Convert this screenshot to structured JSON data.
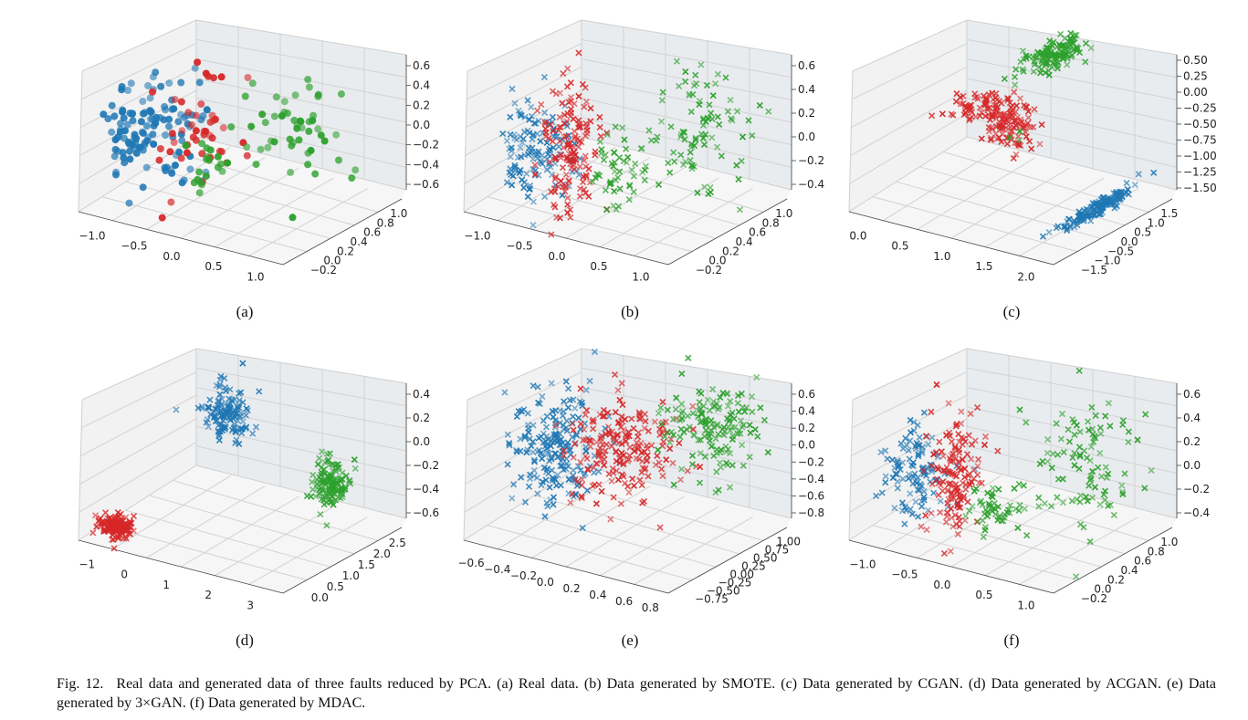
{
  "caption": {
    "label": "Fig. 12.",
    "text": "Real data and generated data of three faults reduced by PCA. (a) Real data. (b) Data generated by SMOTE. (c) Data generated by CGAN. (d) Data generated by ACGAN. (e) Data generated by 3×GAN. (f) Data generated by MDAC."
  },
  "colors": {
    "blue": "#1f77b4",
    "red": "#d62728",
    "green": "#2ca02c"
  },
  "chart_data": [
    {
      "id": "a",
      "label": "(a)",
      "type": "scatter",
      "marker": "circle",
      "x_ticks": [
        "−1.0",
        "−0.5",
        "0.0",
        "0.5",
        "1.0"
      ],
      "y_ticks": [
        "−0.2",
        "0.0",
        "0.2",
        "0.4",
        "0.6",
        "0.8",
        "1.0"
      ],
      "z_ticks": [
        "0.6",
        "0.4",
        "0.2",
        "0.0",
        "−0.2",
        "−0.4",
        "−0.6"
      ],
      "xlim": [
        -1.1,
        1.4
      ],
      "ylim": [
        -0.3,
        1.1
      ],
      "zlim": [
        -0.65,
        0.65
      ],
      "series": [
        {
          "color": "blue",
          "clusters": [
            {
              "x": -0.75,
              "y": 0.05,
              "z": 0.0,
              "sx": 0.15,
              "sy": 0.1,
              "sz": 0.25,
              "n": 80
            },
            {
              "x": -0.25,
              "y": 0.05,
              "z": 0.1,
              "sx": 0.15,
              "sy": 0.1,
              "sz": 0.25,
              "n": 40
            }
          ]
        },
        {
          "color": "red",
          "clusters": [
            {
              "x": -0.05,
              "y": 0.1,
              "z": 0.1,
              "sx": 0.2,
              "sy": 0.15,
              "sz": 0.3,
              "n": 45
            }
          ]
        },
        {
          "color": "green",
          "clusters": [
            {
              "x": 0.1,
              "y": 0.1,
              "z": -0.2,
              "sx": 0.1,
              "sy": 0.1,
              "sz": 0.15,
              "n": 20
            },
            {
              "x": 0.6,
              "y": 0.6,
              "z": 0.05,
              "sx": 0.3,
              "sy": 0.2,
              "sz": 0.3,
              "n": 50
            }
          ]
        }
      ]
    },
    {
      "id": "b",
      "label": "(b)",
      "type": "scatter",
      "marker": "x",
      "x_ticks": [
        "−1.0",
        "−0.5",
        "0.0",
        "0.5",
        "1.0"
      ],
      "y_ticks": [
        "−0.2",
        "0.0",
        "0.2",
        "0.4",
        "0.6",
        "0.8",
        "1.0"
      ],
      "z_ticks": [
        "0.6",
        "0.4",
        "0.2",
        "0.0",
        "−0.2",
        "−0.4"
      ],
      "xlim": [
        -1.1,
        1.4
      ],
      "ylim": [
        -0.3,
        1.1
      ],
      "zlim": [
        -0.5,
        0.65
      ],
      "series": [
        {
          "color": "blue",
          "clusters": [
            {
              "x": -0.7,
              "y": 0.05,
              "z": -0.05,
              "sx": 0.15,
              "sy": 0.08,
              "sz": 0.2,
              "n": 90
            },
            {
              "x": -0.35,
              "y": 0.05,
              "z": 0.05,
              "sx": 0.1,
              "sy": 0.08,
              "sz": 0.2,
              "n": 40
            }
          ]
        },
        {
          "color": "red",
          "clusters": [
            {
              "x": -0.15,
              "y": 0.05,
              "z": 0.05,
              "sx": 0.15,
              "sy": 0.1,
              "sz": 0.28,
              "n": 140
            }
          ]
        },
        {
          "color": "green",
          "clusters": [
            {
              "x": 0.25,
              "y": 0.25,
              "z": -0.15,
              "sx": 0.15,
              "sy": 0.1,
              "sz": 0.15,
              "n": 50
            },
            {
              "x": 0.75,
              "y": 0.7,
              "z": 0.05,
              "sx": 0.25,
              "sy": 0.2,
              "sz": 0.25,
              "n": 90
            }
          ]
        }
      ]
    },
    {
      "id": "c",
      "label": "(c)",
      "type": "scatter",
      "marker": "x",
      "x_ticks": [
        "0.0",
        "0.5",
        "1.0",
        "1.5",
        "2.0"
      ],
      "y_ticks": [
        "−1.5",
        "−1.0",
        "−0.5",
        "0.0",
        "0.5",
        "1.0",
        "1.5"
      ],
      "z_ticks": [
        "0.50",
        "0.25",
        "0.00",
        "−0.25",
        "−0.50",
        "−0.75",
        "−1.00",
        "−1.25",
        "−1.50"
      ],
      "xlim": [
        -0.1,
        2.3
      ],
      "ylim": [
        -1.7,
        1.7
      ],
      "zlim": [
        -1.55,
        0.6
      ],
      "series": [
        {
          "color": "blue",
          "clusters": [
            {
              "x": 2.0,
              "y": 0.3,
              "z": -1.45,
              "sx": 0.05,
              "sy": 0.5,
              "sz": 0.03,
              "n": 150
            }
          ]
        },
        {
          "color": "red",
          "clusters": [
            {
              "x": 0.9,
              "y": -0.5,
              "z": 0.05,
              "sx": 0.15,
              "sy": 0.3,
              "sz": 0.03,
              "n": 60
            },
            {
              "x": 1.1,
              "y": 0.0,
              "z": -0.35,
              "sx": 0.15,
              "sy": 0.2,
              "sz": 0.2,
              "n": 110
            }
          ]
        },
        {
          "color": "green",
          "clusters": [
            {
              "x": 1.2,
              "y": 1.0,
              "z": 0.45,
              "sx": 0.1,
              "sy": 0.4,
              "sz": 0.04,
              "n": 130
            },
            {
              "x": 1.2,
              "y": 0.0,
              "z": -0.6,
              "sx": 0.05,
              "sy": 0.05,
              "sz": 0.1,
              "n": 3
            }
          ]
        }
      ]
    },
    {
      "id": "d",
      "label": "(d)",
      "type": "scatter",
      "marker": "x",
      "x_ticks": [
        "−1",
        "0",
        "1",
        "2",
        "3"
      ],
      "y_ticks": [
        "0.0",
        "0.5",
        "1.0",
        "1.5",
        "2.0",
        "2.5"
      ],
      "z_ticks": [
        "0.4",
        "0.2",
        "0.0",
        "−0.2",
        "−0.4",
        "−0.6"
      ],
      "xlim": [
        -1.4,
        3.4
      ],
      "ylim": [
        -0.2,
        2.7
      ],
      "zlim": [
        -0.65,
        0.45
      ],
      "series": [
        {
          "color": "blue",
          "clusters": [
            {
              "x": 0.2,
              "y": 1.8,
              "z": 0.1,
              "sx": 0.25,
              "sy": 0.15,
              "sz": 0.12,
              "n": 130
            }
          ]
        },
        {
          "color": "red",
          "clusters": [
            {
              "x": -0.8,
              "y": 0.1,
              "z": -0.55,
              "sx": 0.18,
              "sy": 0.1,
              "sz": 0.04,
              "n": 150
            }
          ]
        },
        {
          "color": "green",
          "clusters": [
            {
              "x": 2.6,
              "y": 1.8,
              "z": -0.25,
              "sx": 0.15,
              "sy": 0.15,
              "sz": 0.1,
              "n": 130
            }
          ]
        }
      ]
    },
    {
      "id": "e",
      "label": "(e)",
      "type": "scatter",
      "marker": "x",
      "x_ticks": [
        "−0.6",
        "−0.4",
        "−0.2",
        "0.0",
        "0.2",
        "0.4",
        "0.6",
        "0.8"
      ],
      "y_ticks": [
        "−0.75",
        "−0.50",
        "−0.25",
        "0.00",
        "0.25",
        "0.50",
        "0.75",
        "1.00"
      ],
      "z_ticks": [
        "0.6",
        "0.4",
        "0.2",
        "0.0",
        "−0.2",
        "−0.4",
        "−0.6",
        "−0.8"
      ],
      "xlim": [
        -0.7,
        0.9
      ],
      "ylim": [
        -0.85,
        1.1
      ],
      "zlim": [
        -0.85,
        0.65
      ],
      "series": [
        {
          "color": "blue",
          "clusters": [
            {
              "x": -0.4,
              "y": 0.0,
              "z": -0.1,
              "sx": 0.15,
              "sy": 0.2,
              "sz": 0.3,
              "n": 200
            }
          ]
        },
        {
          "color": "red",
          "clusters": [
            {
              "x": 0.1,
              "y": 0.1,
              "z": 0.05,
              "sx": 0.2,
              "sy": 0.3,
              "sz": 0.25,
              "n": 200
            }
          ]
        },
        {
          "color": "green",
          "clusters": [
            {
              "x": 0.5,
              "y": 0.8,
              "z": 0.1,
              "sx": 0.15,
              "sy": 0.2,
              "sz": 0.25,
              "n": 150
            }
          ]
        }
      ]
    },
    {
      "id": "f",
      "label": "(f)",
      "type": "scatter",
      "marker": "x",
      "x_ticks": [
        "−1.0",
        "−0.5",
        "0.0",
        "0.5",
        "1.0"
      ],
      "y_ticks": [
        "−0.2",
        "0.0",
        "0.2",
        "0.4",
        "0.6",
        "0.8",
        "1.0"
      ],
      "z_ticks": [
        "0.6",
        "0.4",
        "0.2",
        "0.0",
        "−0.2",
        "−0.4"
      ],
      "xlim": [
        -1.1,
        1.4
      ],
      "ylim": [
        -0.3,
        1.1
      ],
      "zlim": [
        -0.5,
        0.65
      ],
      "series": [
        {
          "color": "blue",
          "clusters": [
            {
              "x": -0.65,
              "y": 0.05,
              "z": 0.0,
              "sx": 0.15,
              "sy": 0.1,
              "sz": 0.2,
              "n": 110
            }
          ]
        },
        {
          "color": "red",
          "clusters": [
            {
              "x": -0.15,
              "y": 0.05,
              "z": 0.05,
              "sx": 0.12,
              "sy": 0.1,
              "sz": 0.25,
              "n": 140
            }
          ]
        },
        {
          "color": "green",
          "clusters": [
            {
              "x": 0.15,
              "y": 0.2,
              "z": -0.25,
              "sx": 0.12,
              "sy": 0.1,
              "sz": 0.1,
              "n": 50
            },
            {
              "x": 0.75,
              "y": 0.7,
              "z": 0.05,
              "sx": 0.25,
              "sy": 0.2,
              "sz": 0.25,
              "n": 100
            }
          ]
        }
      ]
    }
  ]
}
